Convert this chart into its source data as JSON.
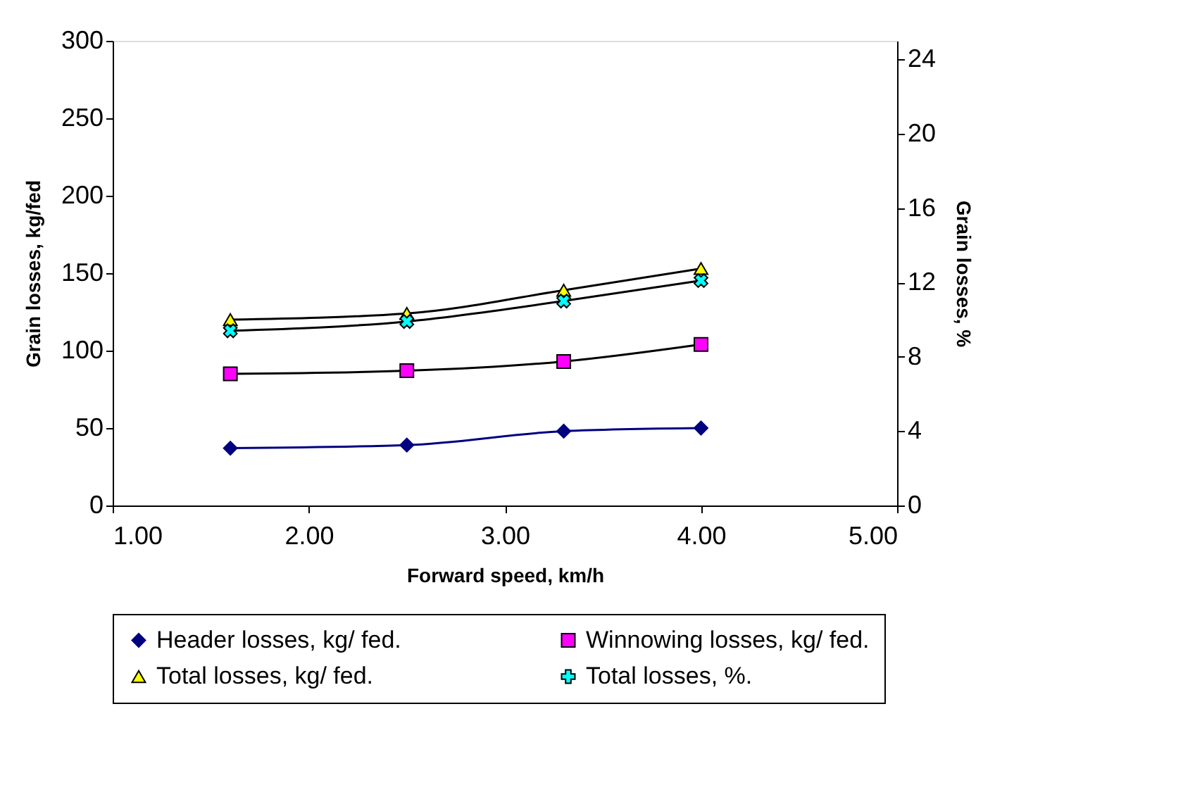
{
  "chart_data": {
    "type": "line",
    "xlabel": "Forward speed, km/h",
    "ylabel": "Grain losses, kg/fed",
    "y2label": "Grain losses, %",
    "x": [
      1.6,
      2.5,
      3.3,
      4.0
    ],
    "series": [
      {
        "name": "Header losses, kg/ fed.",
        "color": "#000080",
        "colors": [
          "#000080",
          "#000080",
          "#000080",
          "#000080"
        ],
        "marker": "diamond",
        "values": [
          37,
          39,
          48,
          50
        ]
      },
      {
        "name": "Winnowing losses, kg/ fed.",
        "color": "#000000",
        "colors": [
          "#ff00ff",
          "#ff00ff",
          "#ff00ff",
          "#ff00ff"
        ],
        "marker": "square",
        "values": [
          85,
          87,
          93,
          104
        ]
      },
      {
        "name": "Total losses, kg/ fed.",
        "color": "#000000",
        "colors": [
          "#ffff00",
          "#ffff00",
          "#ffff00",
          "#ffff00"
        ],
        "marker": "triangle",
        "values": [
          120,
          124,
          139,
          153
        ]
      },
      {
        "name": "Total losses, %.",
        "color": "#000000",
        "colors": [
          "#00ffff",
          "#00ffff",
          "#00ffff",
          "#00ffff"
        ],
        "marker": "cross",
        "axis": "y2",
        "values": [
          9.4,
          9.9,
          11.0,
          12.1
        ]
      }
    ],
    "xlim": [
      1,
      5
    ],
    "xticks": [
      {
        "value": 1,
        "label": "1.00"
      },
      {
        "value": 2,
        "label": "2.00"
      },
      {
        "value": 3,
        "label": "3.00"
      },
      {
        "value": 4,
        "label": "4.00"
      },
      {
        "value": 5,
        "label": "5.00"
      }
    ],
    "ylim": [
      0,
      300
    ],
    "yticks": [
      0,
      50,
      100,
      150,
      200,
      250,
      300
    ],
    "y2lim": [
      0,
      25
    ],
    "y2ticks": [
      0,
      4,
      8,
      12,
      16,
      20,
      24
    ],
    "grid": false,
    "legend": "bottom",
    "line_style": "solid"
  }
}
